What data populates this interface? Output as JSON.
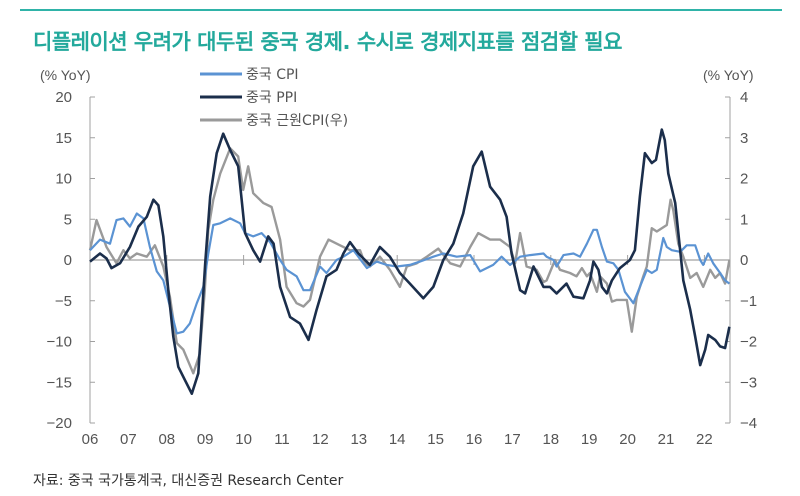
{
  "title": "디플레이션 우려가 대두된 중국 경제. 수시로 경제지표를 점검할 필요",
  "source": "자료: 중국 국가통계국, 대신증권 Research Center",
  "colors": {
    "accent": "#23a99c",
    "cpi": "#5b93d3",
    "ppi": "#1b2e4b",
    "core": "#9a9a9a",
    "axis": "#a0a0a0"
  },
  "chart_data": {
    "type": "line",
    "title": "",
    "left_axis": {
      "unit_label": "(% YoY)",
      "ylim": [
        -20,
        20
      ],
      "ticks": [
        "20",
        "15",
        "10",
        "5",
        "0",
        "-5",
        "-10",
        "-15",
        "-20"
      ]
    },
    "right_axis": {
      "unit_label": "(% YoY)",
      "ylim": [
        -4,
        4
      ],
      "ticks": [
        "4",
        "3",
        "2",
        "1",
        "0",
        "-1",
        "-2",
        "-3",
        "-4"
      ]
    },
    "x_ticks": [
      "06",
      "07",
      "08",
      "09",
      "10",
      "11",
      "12",
      "13",
      "14",
      "15",
      "16",
      "17",
      "18",
      "19",
      "20",
      "21",
      "22"
    ],
    "xlim": [
      2006,
      2022.7
    ],
    "grid": false,
    "legend_position": "top-left",
    "series": [
      {
        "name": "중국 CPI",
        "axis": "left",
        "x": [
          2006.0,
          2006.26,
          2006.52,
          2006.69,
          2006.87,
          2007.04,
          2007.22,
          2007.39,
          2007.56,
          2007.74,
          2007.91,
          2008.08,
          2008.26,
          2008.43,
          2008.6,
          2008.78,
          2008.95,
          2009.08,
          2009.21,
          2009.39,
          2009.65,
          2009.91,
          2010.04,
          2010.25,
          2010.47,
          2010.69,
          2010.95,
          2011.12,
          2011.38,
          2011.56,
          2011.73,
          2011.99,
          2012.16,
          2012.42,
          2012.6,
          2012.86,
          2013.21,
          2013.47,
          2013.73,
          2013.99,
          2014.33,
          2014.59,
          2014.94,
          2015.2,
          2015.55,
          2015.9,
          2016.16,
          2016.5,
          2016.72,
          2016.94,
          2017.2,
          2017.46,
          2017.81,
          2017.89,
          2018.07,
          2018.15,
          2018.33,
          2018.59,
          2018.76,
          2018.94,
          2019.11,
          2019.2,
          2019.33,
          2019.46,
          2019.63,
          2019.76,
          2019.93,
          2020.15,
          2020.32,
          2020.5,
          2020.63,
          2020.76,
          2020.93,
          2021.02,
          2021.15,
          2021.37,
          2021.54,
          2021.76,
          2021.89,
          2021.97,
          2022.1,
          2022.23,
          2022.41,
          2022.54,
          2022.65
        ],
        "y": [
          1.2,
          2.5,
          2.0,
          4.9,
          5.1,
          4.1,
          5.7,
          5.1,
          1.6,
          -1.4,
          -2.5,
          -5.7,
          -9.0,
          -8.8,
          -7.8,
          -5.3,
          -3.3,
          0.8,
          4.3,
          4.5,
          5.1,
          4.5,
          3.3,
          2.9,
          3.3,
          2.2,
          0,
          -1.2,
          -2.0,
          -3.7,
          -3.7,
          -0.8,
          -1.6,
          0,
          0.4,
          1.2,
          -1.0,
          -0.2,
          -0.6,
          -0.8,
          -0.6,
          -0.2,
          0.4,
          0.8,
          0.4,
          0.6,
          -1.4,
          -0.6,
          0.4,
          -0.6,
          0.4,
          0.6,
          0.8,
          0.4,
          0,
          -0.8,
          0.6,
          0.8,
          0.4,
          2.0,
          3.7,
          3.7,
          1.6,
          -0.2,
          -0.4,
          -1.2,
          -3.9,
          -5.3,
          -3.3,
          -1.2,
          -1.6,
          -1.2,
          2.7,
          1.6,
          1.2,
          1.0,
          1.8,
          1.8,
          0,
          -0.6,
          0.8,
          -0.4,
          -1.6,
          -2.5,
          -2.9
        ]
      },
      {
        "name": "중국 PPI",
        "axis": "left",
        "x": [
          2006.0,
          2006.26,
          2006.43,
          2006.56,
          2006.78,
          2007.04,
          2007.26,
          2007.48,
          2007.65,
          2007.78,
          2007.91,
          2008.04,
          2008.17,
          2008.3,
          2008.47,
          2008.65,
          2008.82,
          2009.0,
          2009.13,
          2009.3,
          2009.47,
          2009.65,
          2009.86,
          2010.04,
          2010.25,
          2010.43,
          2010.64,
          2010.78,
          2010.95,
          2011.21,
          2011.47,
          2011.69,
          2011.9,
          2012.16,
          2012.42,
          2012.6,
          2012.77,
          2012.99,
          2013.29,
          2013.55,
          2013.81,
          2014.07,
          2014.33,
          2014.68,
          2014.94,
          2015.2,
          2015.46,
          2015.72,
          2015.98,
          2016.2,
          2016.42,
          2016.68,
          2016.85,
          2016.98,
          2017.2,
          2017.33,
          2017.55,
          2017.81,
          2017.98,
          2018.15,
          2018.41,
          2018.59,
          2018.85,
          2019.02,
          2019.11,
          2019.24,
          2019.33,
          2019.46,
          2019.59,
          2019.8,
          2020.06,
          2020.19,
          2020.32,
          2020.45,
          2020.63,
          2020.74,
          2020.89,
          2020.97,
          2021.06,
          2021.24,
          2021.45,
          2021.63,
          2021.76,
          2021.89,
          2022.02,
          2022.1,
          2022.28,
          2022.41,
          2022.54,
          2022.65
        ],
        "y": [
          -0.2,
          0.8,
          0.2,
          -1.0,
          -0.4,
          1.6,
          4.1,
          5.3,
          7.4,
          6.7,
          2.9,
          -3.7,
          -9.4,
          -13.1,
          -14.7,
          -16.4,
          -13.9,
          -0.4,
          7.8,
          13.1,
          15.5,
          13.5,
          11.5,
          3.3,
          1.2,
          -0.2,
          2.9,
          2.0,
          -3.3,
          -7.0,
          -7.8,
          -9.8,
          -6.1,
          -2.0,
          -1.2,
          0.8,
          2.2,
          0.8,
          -0.6,
          1.6,
          0.4,
          -1.6,
          -2.9,
          -4.7,
          -3.3,
          0,
          2.0,
          5.7,
          11.5,
          13.3,
          9.0,
          7.4,
          5.3,
          0.8,
          -3.7,
          -4.1,
          -0.8,
          -3.3,
          -3.3,
          -4.1,
          -2.9,
          -4.5,
          -4.7,
          -2.5,
          -0.2,
          -1.2,
          -3.3,
          -4.1,
          -2.5,
          -1.0,
          0,
          1.2,
          7.8,
          13.1,
          11.9,
          12.3,
          16.0,
          14.7,
          10.6,
          7.0,
          -2.5,
          -6.1,
          -9.4,
          -12.9,
          -11.0,
          -9.2,
          -9.8,
          -10.6,
          -10.8,
          -8.2
        ]
      },
      {
        "name": "중국 근원CPI(우)",
        "axis": "right",
        "x": [
          2006.0,
          2006.17,
          2006.43,
          2006.69,
          2006.87,
          2007.04,
          2007.22,
          2007.48,
          2007.69,
          2007.91,
          2008.08,
          2008.26,
          2008.43,
          2008.69,
          2008.86,
          2008.99,
          2009.08,
          2009.21,
          2009.39,
          2009.65,
          2009.86,
          2009.99,
          2010.12,
          2010.25,
          2010.51,
          2010.73,
          2010.95,
          2011.12,
          2011.38,
          2011.56,
          2011.73,
          2011.99,
          2012.21,
          2012.51,
          2012.77,
          2013.03,
          2013.16,
          2013.29,
          2013.55,
          2013.81,
          2014.07,
          2014.25,
          2014.51,
          2014.77,
          2015.07,
          2015.38,
          2015.64,
          2015.9,
          2016.11,
          2016.42,
          2016.68,
          2016.94,
          2017.07,
          2017.2,
          2017.37,
          2017.63,
          2017.81,
          2017.89,
          2018.11,
          2018.24,
          2018.5,
          2018.67,
          2018.81,
          2018.94,
          2019.02,
          2019.2,
          2019.28,
          2019.46,
          2019.59,
          2019.72,
          2019.98,
          2020.11,
          2020.24,
          2020.41,
          2020.5,
          2020.63,
          2020.76,
          2020.89,
          2021.02,
          2021.12,
          2021.19,
          2021.32,
          2021.45,
          2021.63,
          2021.8,
          2021.97,
          2022.15,
          2022.28,
          2022.41,
          2022.54,
          2022.65
        ],
        "y": [
          0.24,
          0.98,
          0.32,
          -0.08,
          0.24,
          0.04,
          0.16,
          0.08,
          0.36,
          -0.16,
          -0.9,
          -2.04,
          -2.2,
          -2.78,
          -2.3,
          -0.74,
          0.74,
          1.48,
          2.12,
          2.74,
          2.54,
          1.72,
          2.3,
          1.64,
          1.4,
          1.3,
          0.5,
          -0.66,
          -1.06,
          -1.14,
          -0.98,
          0.08,
          0.5,
          0.36,
          0.24,
          0.24,
          -0.08,
          -0.16,
          0.08,
          -0.24,
          -0.66,
          -0.16,
          -0.08,
          0.08,
          0.28,
          -0.08,
          -0.16,
          0.32,
          0.66,
          0.5,
          0.5,
          0.32,
          -0.08,
          0.66,
          -0.16,
          -0.24,
          -0.54,
          -0.5,
          0,
          -0.24,
          -0.32,
          -0.4,
          -0.2,
          -0.4,
          -0.32,
          -0.78,
          -0.4,
          -0.58,
          -1.02,
          -0.98,
          -0.98,
          -1.76,
          -0.9,
          -0.4,
          -0.16,
          0.78,
          0.7,
          0.78,
          0.86,
          1.48,
          1.22,
          0.4,
          0.08,
          -0.44,
          -0.32,
          -0.66,
          -0.24,
          -0.44,
          -0.32,
          -0.58,
          0
        ]
      }
    ]
  }
}
